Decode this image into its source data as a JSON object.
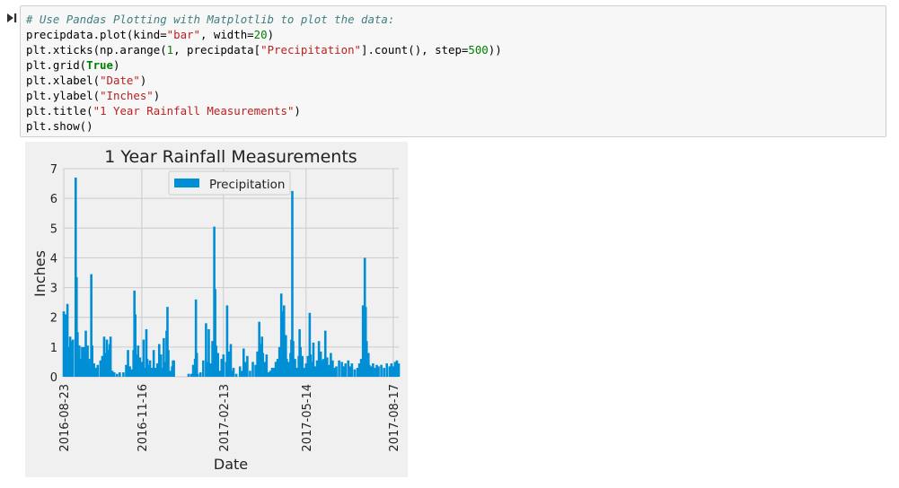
{
  "notebook": {
    "code_lines": [
      [
        {
          "t": "comment",
          "v": "# Use Pandas Plotting with Matplotlib to plot the data:"
        }
      ],
      [
        {
          "t": "plain",
          "v": "precipdata.plot(kind="
        },
        {
          "t": "string",
          "v": "\"bar\""
        },
        {
          "t": "plain",
          "v": ", width="
        },
        {
          "t": "num",
          "v": "20"
        },
        {
          "t": "plain",
          "v": ")"
        }
      ],
      [
        {
          "t": "plain",
          "v": "plt.xticks(np.arange("
        },
        {
          "t": "num",
          "v": "1"
        },
        {
          "t": "plain",
          "v": ", precipdata["
        },
        {
          "t": "string",
          "v": "\"Precipitation\""
        },
        {
          "t": "plain",
          "v": "].count(), step="
        },
        {
          "t": "num",
          "v": "500"
        },
        {
          "t": "plain",
          "v": "))"
        }
      ],
      [
        {
          "t": "plain",
          "v": "plt.grid("
        },
        {
          "t": "kw",
          "v": "True"
        },
        {
          "t": "plain",
          "v": ")"
        }
      ],
      [
        {
          "t": "plain",
          "v": "plt.xlabel("
        },
        {
          "t": "string",
          "v": "\"Date\""
        },
        {
          "t": "plain",
          "v": ")"
        }
      ],
      [
        {
          "t": "plain",
          "v": "plt.ylabel("
        },
        {
          "t": "string",
          "v": "\"Inches\""
        },
        {
          "t": "plain",
          "v": ")"
        }
      ],
      [
        {
          "t": "plain",
          "v": "plt.title("
        },
        {
          "t": "string",
          "v": "\"1 Year Rainfall Measurements\""
        },
        {
          "t": "plain",
          "v": ")"
        }
      ],
      [
        {
          "t": "plain",
          "v": "plt.show()"
        }
      ]
    ]
  },
  "colors": {
    "bar": "#008fd5",
    "grid": "#cbcbcb",
    "plot_bg": "#f0f0f0",
    "comment": "#408080",
    "string": "#ba2121",
    "number": "#008000"
  },
  "chart_data": {
    "type": "bar",
    "title": "1 Year Rainfall Measurements",
    "xlabel": "Date",
    "ylabel": "Inches",
    "ylim": [
      0,
      7
    ],
    "yticks": [
      0,
      1,
      2,
      3,
      4,
      5,
      6,
      7
    ],
    "grid": true,
    "legend_position": "top-center",
    "x_range": [
      "2016-08-23",
      "2017-08-23"
    ],
    "xtick_labels": [
      "2016-08-23",
      "2016-11-16",
      "2017-02-13",
      "2017-05-14",
      "2017-08-17"
    ],
    "series": [
      {
        "name": "Precipitation",
        "points": [
          [
            "2016-08-23",
            2.2
          ],
          [
            "2016-08-24",
            0.6
          ],
          [
            "2016-08-25",
            2.1
          ],
          [
            "2016-08-27",
            2.45
          ],
          [
            "2016-08-28",
            1.0
          ],
          [
            "2016-08-29",
            0.5
          ],
          [
            "2016-08-30",
            1.35
          ],
          [
            "2016-08-31",
            1.2
          ],
          [
            "2016-09-01",
            0.5
          ],
          [
            "2016-09-02",
            1.25
          ],
          [
            "2016-09-05",
            6.7
          ],
          [
            "2016-09-06",
            3.35
          ],
          [
            "2016-09-07",
            1.5
          ],
          [
            "2016-09-08",
            0.8
          ],
          [
            "2016-09-09",
            1.05
          ],
          [
            "2016-09-11",
            0.6
          ],
          [
            "2016-09-12",
            1.0
          ],
          [
            "2016-09-14",
            1.0
          ],
          [
            "2016-09-16",
            1.55
          ],
          [
            "2016-09-17",
            0.3
          ],
          [
            "2016-09-18",
            1.05
          ],
          [
            "2016-09-20",
            0.6
          ],
          [
            "2016-09-22",
            3.45
          ],
          [
            "2016-09-23",
            1.05
          ],
          [
            "2016-09-25",
            0.45
          ],
          [
            "2016-09-27",
            0.3
          ],
          [
            "2016-09-29",
            0.4
          ],
          [
            "2016-10-02",
            0.55
          ],
          [
            "2016-10-04",
            0.7
          ],
          [
            "2016-10-06",
            1.35
          ],
          [
            "2016-10-07",
            0.8
          ],
          [
            "2016-10-09",
            1.25
          ],
          [
            "2016-10-10",
            0.9
          ],
          [
            "2016-10-12",
            1.1
          ],
          [
            "2016-10-13",
            1.35
          ],
          [
            "2016-10-15",
            0.2
          ],
          [
            "2016-10-17",
            0.15
          ],
          [
            "2016-10-20",
            0.1
          ],
          [
            "2016-10-23",
            0.15
          ],
          [
            "2016-10-27",
            0.15
          ],
          [
            "2016-10-30",
            0.4
          ],
          [
            "2016-11-01",
            0.9
          ],
          [
            "2016-11-03",
            0.35
          ],
          [
            "2016-11-05",
            0.25
          ],
          [
            "2016-11-07",
            0.9
          ],
          [
            "2016-11-08",
            2.9
          ],
          [
            "2016-11-09",
            2.1
          ],
          [
            "2016-11-10",
            0.75
          ],
          [
            "2016-11-12",
            1.05
          ],
          [
            "2016-11-14",
            0.65
          ],
          [
            "2016-11-16",
            0.5
          ],
          [
            "2016-11-18",
            1.25
          ],
          [
            "2016-11-19",
            0.3
          ],
          [
            "2016-11-21",
            1.6
          ],
          [
            "2016-11-22",
            0.6
          ],
          [
            "2016-11-24",
            0.4
          ],
          [
            "2016-11-25",
            0.55
          ],
          [
            "2016-11-27",
            0.3
          ],
          [
            "2016-11-29",
            0.9
          ],
          [
            "2016-12-01",
            0.3
          ],
          [
            "2016-12-03",
            0.45
          ],
          [
            "2016-12-05",
            1.1
          ],
          [
            "2016-12-07",
            0.75
          ],
          [
            "2016-12-08",
            0.3
          ],
          [
            "2016-12-10",
            1.3
          ],
          [
            "2016-12-12",
            0.5
          ],
          [
            "2016-12-13",
            1.55
          ],
          [
            "2016-12-14",
            2.35
          ],
          [
            "2016-12-15",
            0.9
          ],
          [
            "2016-12-17",
            0.2
          ],
          [
            "2016-12-19",
            0.35
          ],
          [
            "2016-12-20",
            0.55
          ],
          [
            "2016-12-21",
            0.55
          ],
          [
            "2017-01-06",
            0.1
          ],
          [
            "2017-01-09",
            0.1
          ],
          [
            "2017-01-11",
            0.4
          ],
          [
            "2017-01-13",
            0.6
          ],
          [
            "2017-01-14",
            2.6
          ],
          [
            "2017-01-15",
            0.8
          ],
          [
            "2017-01-16",
            0.1
          ],
          [
            "2017-01-19",
            0.15
          ],
          [
            "2017-01-22",
            0.55
          ],
          [
            "2017-01-25",
            1.8
          ],
          [
            "2017-01-26",
            0.5
          ],
          [
            "2017-01-28",
            1.6
          ],
          [
            "2017-01-30",
            0.45
          ],
          [
            "2017-02-01",
            1.2
          ],
          [
            "2017-02-03",
            5.05
          ],
          [
            "2017-02-04",
            2.95
          ],
          [
            "2017-02-05",
            1.05
          ],
          [
            "2017-02-06",
            0.75
          ],
          [
            "2017-02-07",
            0.8
          ],
          [
            "2017-02-09",
            0.2
          ],
          [
            "2017-02-11",
            0.6
          ],
          [
            "2017-02-13",
            0.75
          ],
          [
            "2017-02-16",
            0.5
          ],
          [
            "2017-02-17",
            2.4
          ],
          [
            "2017-02-19",
            0.85
          ],
          [
            "2017-02-21",
            1.1
          ],
          [
            "2017-02-22",
            0.2
          ],
          [
            "2017-02-24",
            0.3
          ],
          [
            "2017-02-27",
            0.1
          ],
          [
            "2017-03-03",
            0.35
          ],
          [
            "2017-03-05",
            0.2
          ],
          [
            "2017-03-07",
            0.95
          ],
          [
            "2017-03-09",
            0.5
          ],
          [
            "2017-03-11",
            0.7
          ],
          [
            "2017-03-14",
            0.2
          ],
          [
            "2017-03-17",
            0.5
          ],
          [
            "2017-03-20",
            0.4
          ],
          [
            "2017-03-22",
            0.85
          ],
          [
            "2017-03-24",
            1.85
          ],
          [
            "2017-03-25",
            1.1
          ],
          [
            "2017-03-27",
            1.35
          ],
          [
            "2017-03-28",
            0.8
          ],
          [
            "2017-03-30",
            0.5
          ],
          [
            "2017-04-01",
            0.75
          ],
          [
            "2017-04-03",
            0.15
          ],
          [
            "2017-04-05",
            0.2
          ],
          [
            "2017-04-07",
            0.3
          ],
          [
            "2017-04-09",
            0.3
          ],
          [
            "2017-04-11",
            0.5
          ],
          [
            "2017-04-13",
            0.6
          ],
          [
            "2017-04-15",
            1.0
          ],
          [
            "2017-04-16",
            0.75
          ],
          [
            "2017-04-17",
            2.8
          ],
          [
            "2017-04-18",
            2.2
          ],
          [
            "2017-04-19",
            1.8
          ],
          [
            "2017-04-20",
            2.4
          ],
          [
            "2017-04-22",
            1.4
          ],
          [
            "2017-04-23",
            0.6
          ],
          [
            "2017-04-25",
            0.5
          ],
          [
            "2017-04-27",
            0.8
          ],
          [
            "2017-04-28",
            1.25
          ],
          [
            "2017-04-29",
            6.25
          ],
          [
            "2017-04-30",
            1.2
          ],
          [
            "2017-05-02",
            0.6
          ],
          [
            "2017-05-04",
            0.3
          ],
          [
            "2017-05-06",
            0.7
          ],
          [
            "2017-05-07",
            1.6
          ],
          [
            "2017-05-08",
            1.0
          ],
          [
            "2017-05-10",
            0.7
          ],
          [
            "2017-05-12",
            0.3
          ],
          [
            "2017-05-14",
            0.45
          ],
          [
            "2017-05-16",
            0.7
          ],
          [
            "2017-05-18",
            2.15
          ],
          [
            "2017-05-19",
            0.75
          ],
          [
            "2017-05-21",
            0.5
          ],
          [
            "2017-05-22",
            1.15
          ],
          [
            "2017-05-24",
            0.35
          ],
          [
            "2017-05-26",
            0.55
          ],
          [
            "2017-05-28",
            1.2
          ],
          [
            "2017-05-30",
            0.85
          ],
          [
            "2017-06-01",
            0.55
          ],
          [
            "2017-06-02",
            0.6
          ],
          [
            "2017-06-04",
            1.55
          ],
          [
            "2017-06-06",
            0.65
          ],
          [
            "2017-06-08",
            0.4
          ],
          [
            "2017-06-10",
            0.8
          ],
          [
            "2017-06-12",
            0.55
          ],
          [
            "2017-06-14",
            0.3
          ],
          [
            "2017-06-16",
            0.35
          ],
          [
            "2017-06-19",
            0.55
          ],
          [
            "2017-06-22",
            0.5
          ],
          [
            "2017-06-24",
            0.35
          ],
          [
            "2017-06-26",
            0.45
          ],
          [
            "2017-06-29",
            0.55
          ],
          [
            "2017-07-01",
            0.35
          ],
          [
            "2017-07-03",
            0.45
          ],
          [
            "2017-07-06",
            0.25
          ],
          [
            "2017-07-09",
            0.3
          ],
          [
            "2017-07-11",
            0.45
          ],
          [
            "2017-07-13",
            0.6
          ],
          [
            "2017-07-15",
            2.4
          ],
          [
            "2017-07-16",
            0.45
          ],
          [
            "2017-07-17",
            4.0
          ],
          [
            "2017-07-18",
            2.35
          ],
          [
            "2017-07-19",
            1.2
          ],
          [
            "2017-07-21",
            0.8
          ],
          [
            "2017-07-22",
            0.4
          ],
          [
            "2017-07-24",
            0.35
          ],
          [
            "2017-07-26",
            0.45
          ],
          [
            "2017-07-28",
            0.3
          ],
          [
            "2017-07-30",
            0.4
          ],
          [
            "2017-08-01",
            0.35
          ],
          [
            "2017-08-04",
            0.4
          ],
          [
            "2017-08-07",
            0.3
          ],
          [
            "2017-08-10",
            0.45
          ],
          [
            "2017-08-13",
            0.35
          ],
          [
            "2017-08-15",
            0.45
          ],
          [
            "2017-08-17",
            0.35
          ],
          [
            "2017-08-19",
            0.5
          ],
          [
            "2017-08-21",
            0.55
          ],
          [
            "2017-08-23",
            0.45
          ]
        ]
      }
    ]
  }
}
